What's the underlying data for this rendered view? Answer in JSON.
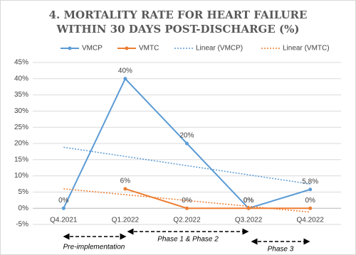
{
  "chart_data": {
    "type": "line",
    "title": [
      "4. MORTALITY RATE FOR HEART FAILURE",
      "WITHIN 30 DAYS POST-DISCHARGE (%)"
    ],
    "categories": [
      "Q4.2021",
      "Q1.2022",
      "Q2.2022",
      "Q3.2022",
      "Q4.2022"
    ],
    "series": [
      {
        "name": "VMCP",
        "color": "#5b9bd5",
        "values": [
          0,
          40,
          20,
          0,
          5.8
        ],
        "value_labels": [
          "0%",
          "40%",
          "20%",
          "0%",
          "5,8%"
        ],
        "trendline": "Linear (VMCP)"
      },
      {
        "name": "VMTC",
        "color": "#ed7d31",
        "values": [
          null,
          6,
          0,
          0,
          0
        ],
        "value_labels": [
          null,
          "6%",
          "0%",
          "0%",
          "0%"
        ],
        "trendline": "Linear (VMTC)"
      }
    ],
    "ylim": [
      -5,
      45
    ],
    "yticks": [
      {
        "value": -5,
        "label": "-5%"
      },
      {
        "value": 0,
        "label": "0%"
      },
      {
        "value": 5,
        "label": "5%"
      },
      {
        "value": 10,
        "label": "10%"
      },
      {
        "value": 15,
        "label": "15%"
      },
      {
        "value": 20,
        "label": "20%"
      },
      {
        "value": 25,
        "label": "25%"
      },
      {
        "value": 30,
        "label": "30%"
      },
      {
        "value": 35,
        "label": "35%"
      },
      {
        "value": 40,
        "label": "40%"
      },
      {
        "value": 45,
        "label": "45%"
      }
    ],
    "grid": true,
    "legend": "top",
    "annotations": [
      "Pre-implementation",
      "Phase 1 & Phase 2",
      "Phase 3"
    ]
  }
}
